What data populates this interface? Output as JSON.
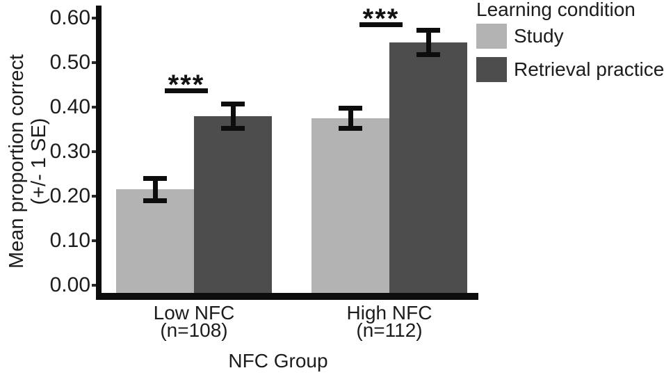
{
  "chart_data": {
    "type": "bar",
    "title": "",
    "xlabel": "NFC Group",
    "ylabel_line1": "Mean proportion correct",
    "ylabel_line2": "(+/- 1 SE)",
    "ylim": [
      0.0,
      0.62
    ],
    "yticks": [
      0.0,
      0.1,
      0.2,
      0.3,
      0.4,
      0.5,
      0.6
    ],
    "ytick_labels": [
      "0.00",
      "0.10",
      "0.20",
      "0.30",
      "0.40",
      "0.50",
      "0.60"
    ],
    "categories": [
      "Low NFC",
      "High NFC"
    ],
    "category_sublabels": [
      "(n=108)",
      "(n=112)"
    ],
    "series": [
      {
        "name": "Study",
        "color": "#b3b3b3",
        "values": [
          0.215,
          0.375
        ],
        "se": [
          0.025,
          0.023
        ]
      },
      {
        "name": "Retrieval practice",
        "color": "#4d4d4d",
        "values": [
          0.38,
          0.545
        ],
        "se": [
          0.027,
          0.027
        ]
      }
    ],
    "significance": [
      {
        "group": "Low NFC",
        "label": "***"
      },
      {
        "group": "High NFC",
        "label": "***"
      }
    ],
    "legend": {
      "title": "Learning condition",
      "position": "top-right"
    },
    "grid": false,
    "error_bars": "+/- 1 SE"
  }
}
